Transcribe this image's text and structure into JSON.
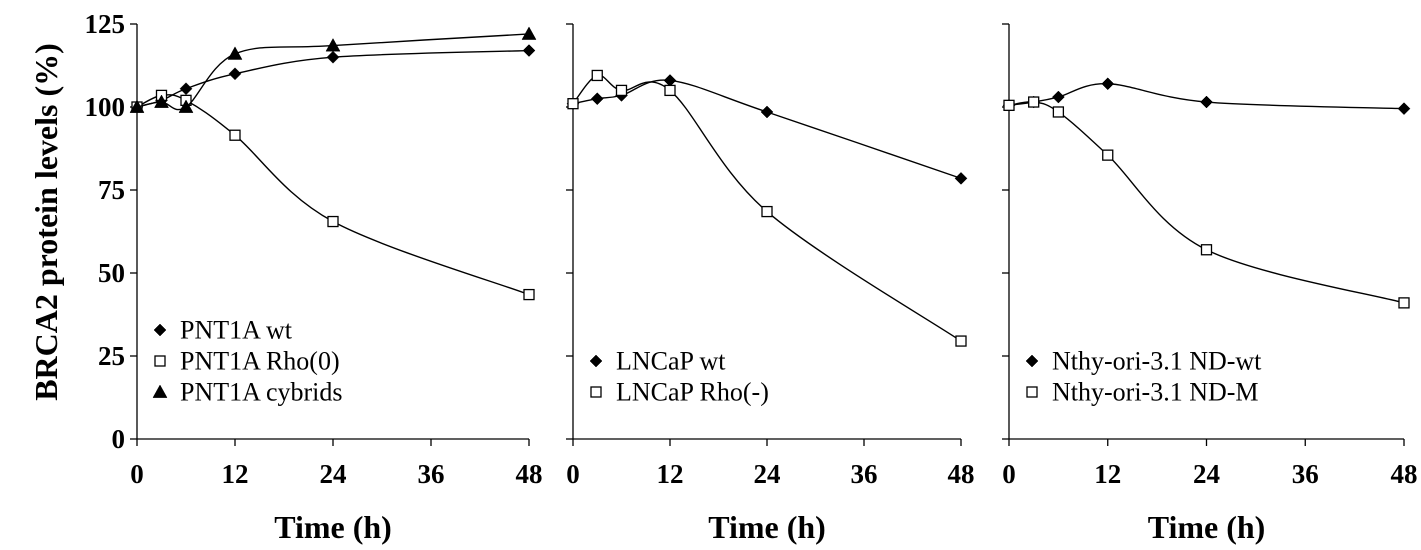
{
  "figure": {
    "ylabel": "BRCA2 protein levels (%)",
    "ytick_labels": [
      "0",
      "25",
      "50",
      "75",
      "100",
      "125"
    ]
  },
  "chart_data": [
    {
      "type": "line",
      "xlabel": "Time (h)",
      "xlim": [
        0,
        48
      ],
      "ylim": [
        0,
        125
      ],
      "xtick_labels": [
        "0",
        "12",
        "24",
        "36",
        "48"
      ],
      "legend_position": "bottom-left",
      "series": [
        {
          "name": "PNT1A wt",
          "marker": "diamond",
          "x": [
            0,
            3,
            6,
            12,
            24,
            48
          ],
          "y": [
            100,
            102,
            105.5,
            110,
            115,
            117
          ]
        },
        {
          "name": "PNT1A Rho(0)",
          "marker": "square",
          "x": [
            0,
            3,
            6,
            12,
            24,
            48
          ],
          "y": [
            100,
            103.5,
            102,
            91.5,
            65.5,
            43.5
          ]
        },
        {
          "name": "PNT1A cybrids",
          "marker": "triangle",
          "x": [
            0,
            3,
            6,
            12,
            24,
            48
          ],
          "y": [
            100,
            101.5,
            100,
            116,
            118.5,
            122
          ]
        }
      ]
    },
    {
      "type": "line",
      "xlabel": "Time (h)",
      "xlim": [
        0,
        48
      ],
      "ylim": [
        0,
        125
      ],
      "xtick_labels": [
        "0",
        "12",
        "24",
        "36",
        "48"
      ],
      "legend_position": "bottom-left",
      "series": [
        {
          "name": "LNCaP wt",
          "marker": "diamond",
          "x": [
            0,
            3,
            6,
            12,
            24,
            48
          ],
          "y": [
            101,
            102.5,
            103.5,
            108,
            98.5,
            78.5
          ]
        },
        {
          "name": "LNCaP Rho(-)",
          "marker": "square",
          "x": [
            0,
            3,
            6,
            12,
            24,
            48
          ],
          "y": [
            101,
            109.5,
            105,
            105,
            68.5,
            29.5
          ]
        }
      ]
    },
    {
      "type": "line",
      "xlabel": "Time (h)",
      "xlim": [
        0,
        48
      ],
      "ylim": [
        0,
        125
      ],
      "xtick_labels": [
        "0",
        "12",
        "24",
        "36",
        "48"
      ],
      "legend_position": "bottom-left",
      "series": [
        {
          "name": "Nthy-ori-3.1 ND-wt",
          "marker": "diamond",
          "x": [
            0,
            3,
            6,
            12,
            24,
            48
          ],
          "y": [
            100.5,
            101.5,
            103,
            107,
            101.5,
            99.5
          ]
        },
        {
          "name": "Nthy-ori-3.1 ND-M",
          "marker": "square",
          "x": [
            0,
            3,
            6,
            12,
            24,
            48
          ],
          "y": [
            100.5,
            101.5,
            98.5,
            85.5,
            57,
            41
          ]
        }
      ]
    }
  ]
}
